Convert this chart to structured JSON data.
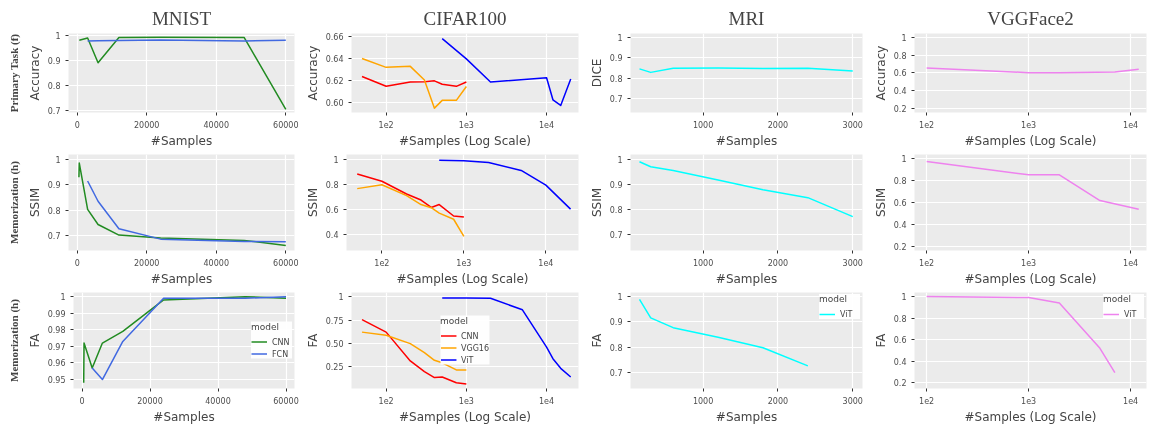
{
  "chart_data": [
    {
      "type": "line",
      "title": "MNIST",
      "xlabel": "#Samples",
      "ylabel": "Accuracy",
      "annotations": [
        "Primary Task (f)"
      ],
      "xlim": [
        -2500,
        62500
      ],
      "ylim": [
        0.69,
        1.008
      ],
      "xticks": [
        0,
        20000,
        40000,
        60000
      ],
      "yticks": [
        0.7,
        0.8,
        0.9,
        1
      ],
      "grid": true,
      "series": [
        {
          "color": "#228b22",
          "x": [
            600,
            3000,
            6000,
            12000,
            24000,
            48000,
            60000
          ],
          "values": [
            0.981,
            0.99,
            0.89,
            0.992,
            0.993,
            0.992,
            0.703
          ]
        },
        {
          "color": "#4169e1",
          "x": [
            3000,
            6000,
            12000,
            24000,
            48000,
            60000
          ],
          "values": [
            0.978,
            0.979,
            0.98,
            0.982,
            0.978,
            0.981
          ]
        }
      ]
    },
    {
      "type": "line",
      "title": "CIFAR100",
      "xlabel": "#Samples (Log Scale)",
      "ylabel": "Accuracy",
      "log": "x",
      "xlim": [
        37,
        25000
      ],
      "ylim": [
        0.5914,
        0.6623
      ],
      "xticks": [
        {
          "value": 100,
          "label": "1e2"
        },
        {
          "value": 1000,
          "label": "1e3"
        },
        {
          "value": 10000,
          "label": "1e4"
        }
      ],
      "yticks": [
        {
          "value": 0.6,
          "label": "0.60"
        },
        {
          "value": 0.62,
          "label": "0.62"
        },
        {
          "value": 0.64,
          "label": "0.64"
        },
        {
          "value": 0.66,
          "label": "0.66"
        }
      ],
      "grid": true,
      "series": [
        {
          "color": "#ff0000",
          "x": [
            50,
            100,
            200,
            300,
            400,
            500,
            750,
            1000
          ],
          "values": [
            0.6237,
            0.6149,
            0.6188,
            0.619,
            0.6198,
            0.6167,
            0.6149,
            0.6188
          ]
        },
        {
          "color": "#ffa500",
          "x": [
            50,
            100,
            200,
            300,
            400,
            500,
            750,
            1000
          ],
          "values": [
            0.6398,
            0.6319,
            0.6328,
            0.6205,
            0.5953,
            0.6023,
            0.6023,
            0.6147
          ]
        },
        {
          "color": "#0000ff",
          "x": [
            500,
            1000,
            2000,
            10000,
            12000,
            15000,
            20000
          ],
          "values": [
            0.6577,
            0.6395,
            0.6188,
            0.6226,
            0.6028,
            0.5977,
            0.6214
          ]
        }
      ]
    },
    {
      "type": "line",
      "title": "MRI",
      "xlabel": "#Samples",
      "ylabel": "DICE",
      "xlim": [
        30,
        3130
      ],
      "ylim": [
        0.634,
        1.018
      ],
      "xticks": [
        1000,
        2000,
        3000
      ],
      "yticks": [
        0.7,
        0.8,
        0.9,
        1
      ],
      "grid": true,
      "series": [
        {
          "color": "#00ffff",
          "x": [
            150,
            300,
            600,
            1200,
            1800,
            2400,
            3000
          ],
          "values": [
            0.846,
            0.829,
            0.849,
            0.85,
            0.848,
            0.849,
            0.836
          ]
        }
      ]
    },
    {
      "type": "line",
      "title": "VGGFace2",
      "xlabel": "#Samples (Log Scale)",
      "ylabel": "Accuracy",
      "log": "x",
      "xlim": [
        76,
        14300
      ],
      "ylim": [
        0.159,
        1.04
      ],
      "xticks": [
        {
          "value": 100,
          "label": "1e2"
        },
        {
          "value": 1000,
          "label": "1e3"
        },
        {
          "value": 10000,
          "label": "1e4"
        }
      ],
      "yticks": [
        0.2,
        0.4,
        0.6,
        0.8,
        1
      ],
      "grid": true,
      "series": [
        {
          "color": "#ee82ee",
          "x": [
            100,
            1000,
            2000,
            7000,
            12000
          ],
          "values": [
            0.655,
            0.603,
            0.603,
            0.61,
            0.641
          ]
        }
      ]
    },
    {
      "type": "line",
      "xlabel": "#Samples",
      "ylabel": "SSIM",
      "annotations": [
        "Memorization (h)"
      ],
      "xlim": [
        -2500,
        62500
      ],
      "ylim": [
        0.64,
        1.02
      ],
      "xticks": [
        0,
        20000,
        40000,
        60000
      ],
      "yticks": [
        0.7,
        0.8,
        0.9,
        1
      ],
      "grid": true,
      "series": [
        {
          "color": "#228b22",
          "x": [
            500,
            600,
            3000,
            6000,
            12000,
            24000,
            48000,
            60000
          ],
          "values": [
            0.93,
            0.986,
            0.803,
            0.743,
            0.701,
            0.689,
            0.68,
            0.66
          ]
        },
        {
          "color": "#4169e1",
          "x": [
            3000,
            6000,
            12000,
            24000,
            48000,
            60000
          ],
          "values": [
            0.915,
            0.835,
            0.726,
            0.685,
            0.676,
            0.675
          ]
        }
      ]
    },
    {
      "type": "line",
      "xlabel": "#Samples (Log Scale)",
      "ylabel": "SSIM",
      "log": "x",
      "xlim": [
        37,
        25000
      ],
      "ylim": [
        0.275,
        1.04
      ],
      "xticks": [
        {
          "value": 100,
          "label": "1e2"
        },
        {
          "value": 1000,
          "label": "1e3"
        },
        {
          "value": 10000,
          "label": "1e4"
        }
      ],
      "yticks": [
        0.4,
        0.6,
        0.8,
        1
      ],
      "grid": true,
      "series": [
        {
          "color": "#ff0000",
          "x": [
            50,
            100,
            200,
            300,
            400,
            500,
            750,
            1000
          ],
          "values": [
            0.885,
            0.827,
            0.725,
            0.677,
            0.618,
            0.641,
            0.55,
            0.542
          ]
        },
        {
          "color": "#ffa500",
          "x": [
            50,
            100,
            200,
            300,
            400,
            500,
            750,
            1000
          ],
          "values": [
            0.768,
            0.799,
            0.712,
            0.641,
            0.616,
            0.573,
            0.524,
            0.387
          ]
        },
        {
          "color": "#0000ff",
          "x": [
            500,
            1000,
            2000,
            5000,
            10000,
            20000
          ],
          "values": [
            0.995,
            0.99,
            0.977,
            0.913,
            0.796,
            0.605
          ]
        }
      ]
    },
    {
      "type": "line",
      "xlabel": "#Samples",
      "ylabel": "SSIM",
      "xlim": [
        30,
        3130
      ],
      "ylim": [
        0.635,
        1.02
      ],
      "xticks": [
        1000,
        2000,
        3000
      ],
      "yticks": [
        0.7,
        0.8,
        0.9,
        1
      ],
      "grid": true,
      "series": [
        {
          "color": "#00ffff",
          "x": [
            150,
            300,
            600,
            1200,
            1800,
            2400,
            3000
          ],
          "values": [
            0.991,
            0.971,
            0.956,
            0.918,
            0.879,
            0.847,
            0.771
          ]
        }
      ]
    },
    {
      "type": "line",
      "xlabel": "#Samples (Log Scale)",
      "ylabel": "SSIM",
      "log": "x",
      "xlim": [
        76,
        14300
      ],
      "ylim": [
        0.159,
        1.038
      ],
      "xticks": [
        {
          "value": 100,
          "label": "1e2"
        },
        {
          "value": 1000,
          "label": "1e3"
        },
        {
          "value": 10000,
          "label": "1e4"
        }
      ],
      "yticks": [
        0.2,
        0.4,
        0.6,
        0.8,
        1
      ],
      "grid": true,
      "series": [
        {
          "color": "#ee82ee",
          "x": [
            100,
            1000,
            2000,
            5000,
            12000
          ],
          "values": [
            0.974,
            0.852,
            0.852,
            0.616,
            0.537
          ]
        }
      ]
    },
    {
      "type": "line",
      "xlabel": "#Samples",
      "ylabel": "FA",
      "annotations": [
        "Memorization (h)"
      ],
      "xlim": [
        -2500,
        62500
      ],
      "ylim": [
        0.9446,
        1.0025
      ],
      "xticks": [
        0,
        20000,
        40000,
        60000
      ],
      "yticks": [
        0.95,
        0.96,
        0.97,
        0.98,
        0.99,
        1
      ],
      "grid": true,
      "legend": "right",
      "legend_title": "model",
      "series": [
        {
          "name": "CNN",
          "color": "#228b22",
          "x": [
            500,
            600,
            3000,
            6000,
            12000,
            24000,
            48000,
            60000
          ],
          "values": [
            0.948,
            0.972,
            0.957,
            0.972,
            0.979,
            0.998,
            1.0,
            0.999
          ]
        },
        {
          "name": "FCN",
          "color": "#4169e1",
          "x": [
            3000,
            6000,
            12000,
            24000,
            48000,
            60000
          ],
          "values": [
            0.957,
            0.95,
            0.973,
            0.999,
            0.999,
            1.0
          ]
        }
      ]
    },
    {
      "type": "line",
      "xlabel": "#Samples (Log Scale)",
      "ylabel": "FA",
      "log": "x",
      "xlim": [
        37,
        25000
      ],
      "ylim": [
        0.016,
        1.048
      ],
      "xticks": [
        {
          "value": 100,
          "label": "1e2"
        },
        {
          "value": 1000,
          "label": "1e3"
        },
        {
          "value": 10000,
          "label": "1e4"
        }
      ],
      "yticks": [
        0.25,
        {
          "value": 0.5,
          "label": "0.50"
        },
        0.75,
        1
      ],
      "grid": true,
      "legend": "center",
      "legend_title": "model",
      "series": [
        {
          "name": "CNN",
          "color": "#ff0000",
          "x": [
            50,
            100,
            200,
            300,
            400,
            500,
            750,
            1000
          ],
          "values": [
            0.756,
            0.622,
            0.312,
            0.198,
            0.133,
            0.14,
            0.078,
            0.064
          ]
        },
        {
          "name": "VGG16",
          "color": "#ffa500",
          "x": [
            50,
            100,
            200,
            300,
            400,
            500,
            750,
            1000
          ],
          "values": [
            0.622,
            0.588,
            0.498,
            0.402,
            0.319,
            0.292,
            0.216,
            0.216
          ]
        },
        {
          "name": "ViT",
          "color": "#0000ff",
          "x": [
            500,
            1000,
            2000,
            5000,
            10000,
            12000,
            15000,
            20000
          ],
          "values": [
            0.99,
            0.99,
            0.986,
            0.862,
            0.46,
            0.336,
            0.233,
            0.14
          ]
        }
      ]
    },
    {
      "type": "line",
      "xlabel": "#Samples",
      "ylabel": "FA",
      "xlim": [
        30,
        3130
      ],
      "ylim": [
        0.635,
        1.017
      ],
      "xticks": [
        1000,
        2000,
        3000
      ],
      "yticks": [
        0.7,
        0.8,
        0.9,
        1
      ],
      "grid": true,
      "legend": "top right",
      "legend_title": "model",
      "series": [
        {
          "name": "ViT",
          "color": "#00ffff",
          "x": [
            150,
            300,
            600,
            1200,
            1800,
            2400
          ],
          "values": [
            0.99,
            0.916,
            0.877,
            0.839,
            0.797,
            0.725
          ]
        }
      ]
    },
    {
      "type": "line",
      "xlabel": "#Samples (Log Scale)",
      "ylabel": "FA",
      "log": "x",
      "xlim": [
        76,
        14300
      ],
      "ylim": [
        0.144,
        1.038
      ],
      "xticks": [
        {
          "value": 100,
          "label": "1e2"
        },
        {
          "value": 1000,
          "label": "1e3"
        },
        {
          "value": 10000,
          "label": "1e4"
        }
      ],
      "yticks": [
        0.2,
        0.4,
        0.6,
        0.8,
        1
      ],
      "grid": true,
      "legend": "top right",
      "legend_title": "model",
      "series": [
        {
          "name": "ViT",
          "color": "#ee82ee",
          "x": [
            100,
            1000,
            2000,
            5000,
            7000
          ],
          "values": [
            1.0,
            0.991,
            0.941,
            0.518,
            0.291
          ]
        }
      ]
    }
  ]
}
